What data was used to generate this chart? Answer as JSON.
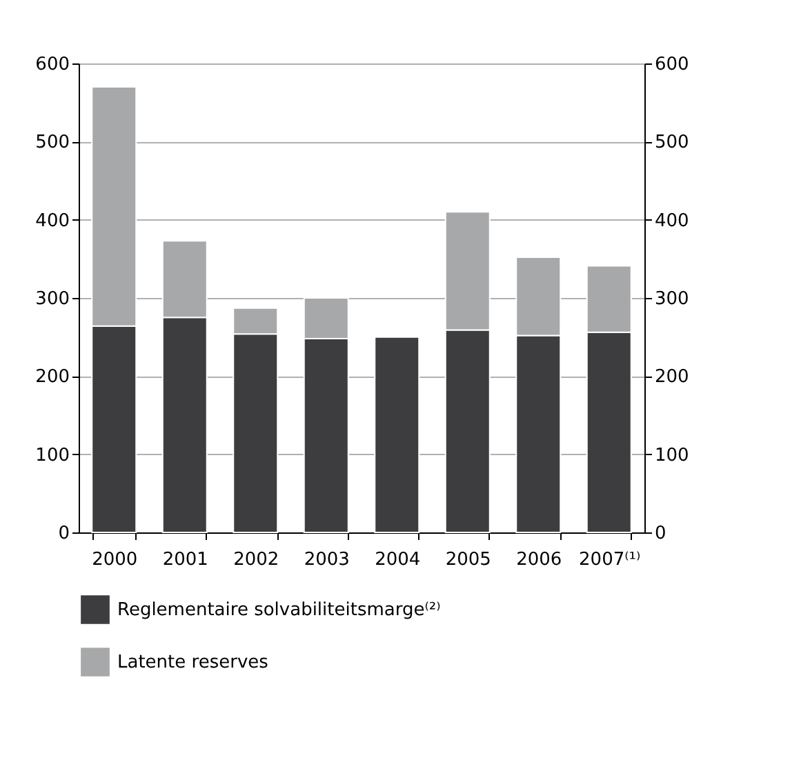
{
  "chart_data": {
    "type": "bar",
    "stacked": true,
    "categories": [
      "2000",
      "2001",
      "2002",
      "2003",
      "2004",
      "2005",
      "2006",
      "2007⁽¹⁾"
    ],
    "series": [
      {
        "name": "Reglementaire solvabiliteitsmarge⁽²⁾",
        "color": "#3d3d3f",
        "values": [
          264,
          275,
          254,
          248,
          250,
          259,
          252,
          256
        ]
      },
      {
        "name": "Latente reserves",
        "color": "#a7a8aa",
        "values": [
          306,
          98,
          33,
          52,
          null,
          151,
          100,
          85
        ]
      }
    ],
    "ylim": [
      0,
      600
    ],
    "yticks": [
      0,
      100,
      200,
      300,
      400,
      500,
      600
    ],
    "y2lim": [
      0,
      600
    ],
    "y2ticks": [
      0,
      100,
      200,
      300,
      400,
      500,
      600
    ],
    "grid": "y",
    "legend": "bottom"
  }
}
